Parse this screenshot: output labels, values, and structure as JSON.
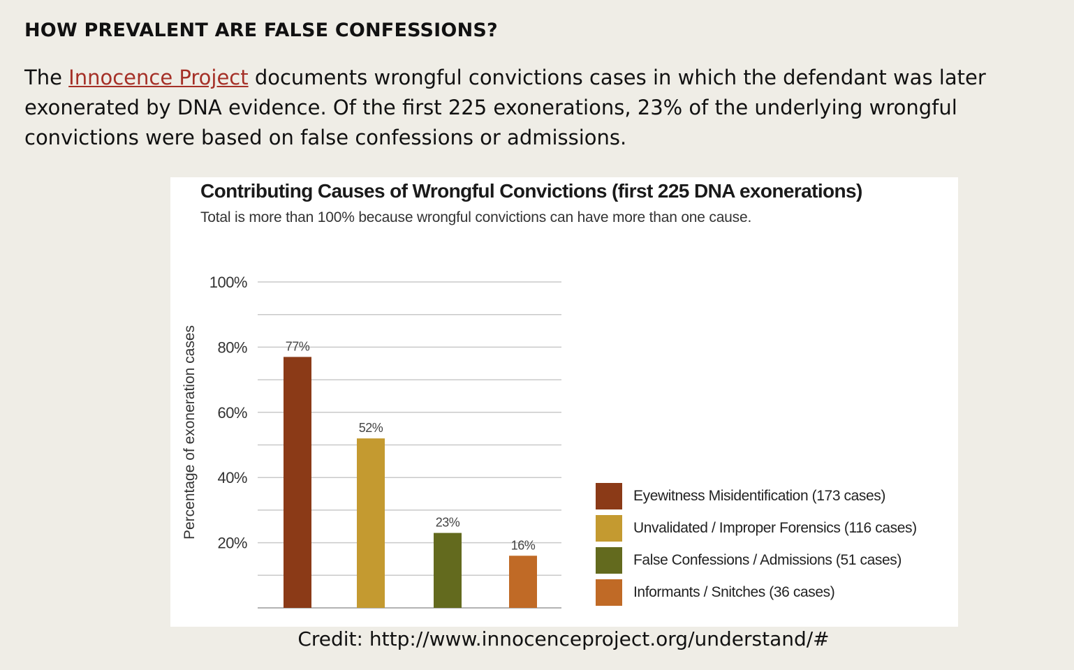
{
  "heading": "HOW PREVALENT ARE FALSE CONFESSIONS?",
  "paragraph": {
    "before_link": "The ",
    "link_text": "Innocence Project",
    "after_link": " documents wrongful convictions cases in which the defendant was later exonerated by DNA evidence.  Of the first 225 exonerations, 23% of the underlying wrongful convictions were based on false confessions or admissions."
  },
  "colors": {
    "link": "#a53027",
    "page_background": "#efede6"
  },
  "chart_data": {
    "type": "bar",
    "title": "Contributing Causes of Wrongful Convictions (first 225 DNA exonerations)",
    "subtitle": "Total is more than 100% because wrongful convictions can have more than one cause.",
    "ylabel": "Percentage  of exoneration cases",
    "xlabel": "",
    "ylim": [
      0,
      100
    ],
    "yticks": [
      {
        "value": 20,
        "label": "20%"
      },
      {
        "value": 40,
        "label": "40%"
      },
      {
        "value": 60,
        "label": "60%"
      },
      {
        "value": 80,
        "label": "80%"
      },
      {
        "value": 100,
        "label": "100%"
      }
    ],
    "gridlines": [
      10,
      20,
      30,
      40,
      50,
      60,
      70,
      80,
      90,
      100
    ],
    "grid": true,
    "legend_position": "right",
    "bars": [
      {
        "value": 77,
        "label": "77%",
        "legend": "Eyewitness Misidentification (173 cases)",
        "color": "#8b3a17"
      },
      {
        "value": 52,
        "label": "52%",
        "legend": "Unvalidated / Improper Forensics (116 cases)",
        "color": "#c49a30"
      },
      {
        "value": 23,
        "label": "23%",
        "legend": "False Confessions / Admissions (51 cases)",
        "color": "#636a1e"
      },
      {
        "value": 16,
        "label": "16%",
        "legend": "Informants / Snitches (36 cases)",
        "color": "#c06a26"
      }
    ]
  },
  "credit": "Credit: http://www.innocenceproject.org/understand/#"
}
